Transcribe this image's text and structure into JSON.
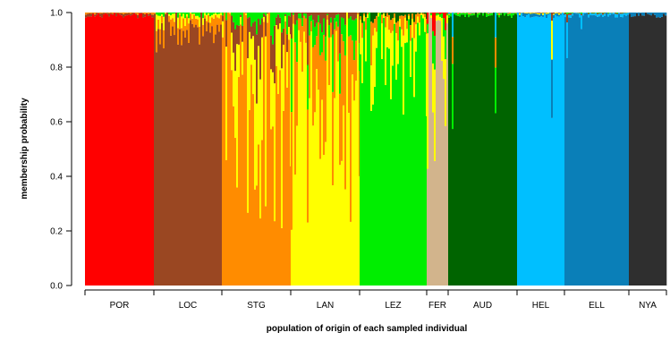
{
  "chart_data": {
    "type": "bar",
    "stacked": true,
    "xlabel": "population of origin of each sampled individual",
    "ylabel": "membership probability",
    "ylim": [
      0,
      1
    ],
    "yticks": [
      0.0,
      0.2,
      0.4,
      0.6,
      0.8,
      1.0
    ],
    "ytick_labels": [
      "0.0",
      "0.2",
      "0.4",
      "0.6",
      "0.8",
      "1.0"
    ],
    "grid": false,
    "legend": "none",
    "categories": [
      "POR",
      "LOC",
      "STG",
      "LAN",
      "LEZ",
      "FER",
      "AUD",
      "HEL",
      "ELL",
      "NYA"
    ],
    "population_colors": {
      "POR": "#ff0000",
      "LOC": "#9a4722",
      "STG": "#ff8c00",
      "LAN": "#ffff00",
      "LEZ": "#00ee00",
      "FER": "#d2b48c",
      "AUD": "#006400",
      "HEL": "#00bfff",
      "ELL": "#0a7fb8",
      "NYA": "#2f2f2f"
    },
    "population_mean_self_membership": [
      0.99,
      0.93,
      0.6,
      0.62,
      0.82,
      0.72,
      0.99,
      0.98,
      0.97,
      1.0
    ]
  }
}
